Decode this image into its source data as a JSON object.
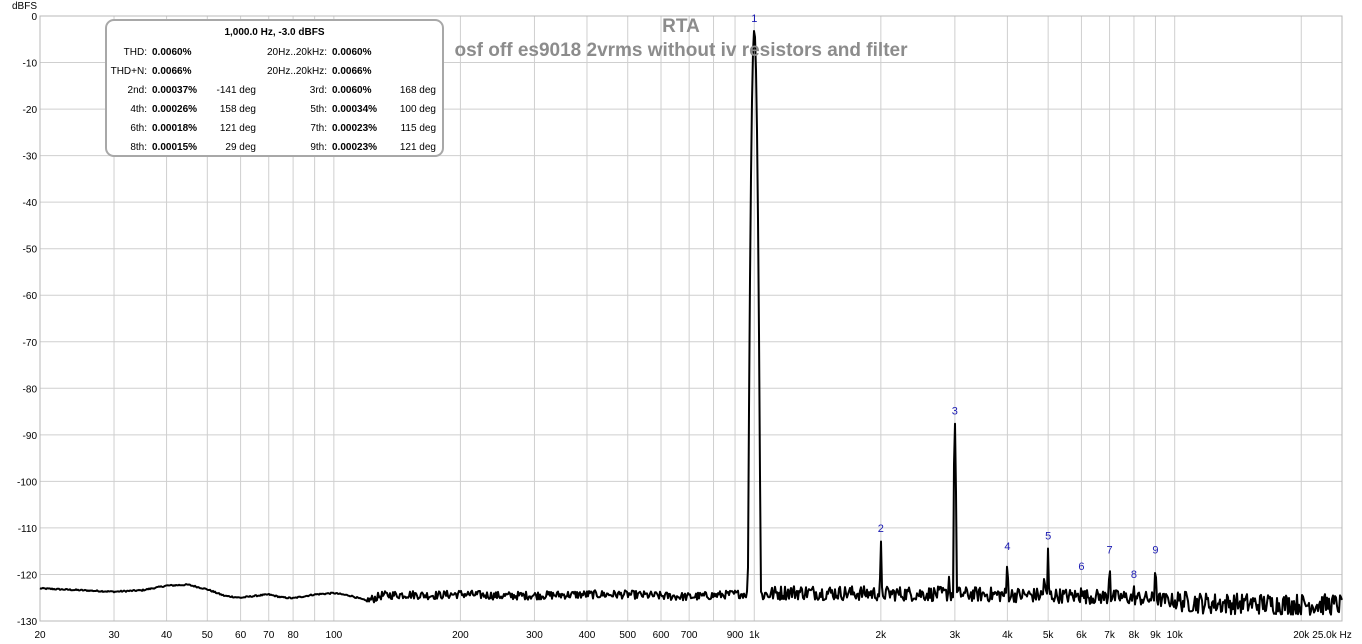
{
  "chart_data": {
    "type": "line",
    "title": "RTA",
    "subtitle": "osf off es9018 2vrms without iv resistors and filter",
    "ylabel": "dBFS",
    "xlabel": "",
    "x_unit": "Hz",
    "x_scale": "log",
    "xlim": [
      20,
      25000
    ],
    "ylim": [
      -130,
      0
    ],
    "grid": true,
    "x_tick_labels": [
      "20",
      "30",
      "40",
      "50",
      "60",
      "70",
      "80",
      "100",
      "200",
      "300",
      "400",
      "500",
      "600",
      "700",
      "900",
      "1k",
      "2k",
      "3k",
      "4k",
      "5k",
      "6k",
      "7k",
      "8k",
      "9k",
      "10k",
      "20k",
      "25.0k Hz"
    ],
    "y_tick_labels": [
      "0",
      "-10",
      "-20",
      "-30",
      "-40",
      "-50",
      "-60",
      "-70",
      "-80",
      "-90",
      "-100",
      "-110",
      "-120",
      "-130"
    ],
    "series": [
      {
        "color": "#000000",
        "noise_floor": [
          [
            20,
            -123
          ],
          [
            30,
            -123.7
          ],
          [
            35,
            -123.4
          ],
          [
            40,
            -122.4
          ],
          [
            45,
            -122.2
          ],
          [
            50,
            -123.2
          ],
          [
            55,
            -124.6
          ],
          [
            60,
            -125
          ],
          [
            65,
            -124.6
          ],
          [
            70,
            -124.3
          ],
          [
            75,
            -124.9
          ],
          [
            80,
            -125.1
          ],
          [
            90,
            -124.3
          ],
          [
            100,
            -124
          ],
          [
            110,
            -124.6
          ],
          [
            120,
            -125.7
          ],
          [
            130,
            -124.5
          ],
          [
            150,
            -124.3
          ],
          [
            170,
            -124.5
          ],
          [
            200,
            -124.2
          ],
          [
            250,
            -124.6
          ],
          [
            300,
            -124.5
          ],
          [
            400,
            -124.3
          ],
          [
            500,
            -124.3
          ],
          [
            600,
            -124.6
          ],
          [
            700,
            -124.8
          ],
          [
            800,
            -124.5
          ],
          [
            900,
            -124.2
          ],
          [
            950,
            -124.2
          ],
          [
            1050,
            -124.3
          ],
          [
            1200,
            -123.8
          ],
          [
            2000,
            -124.1
          ],
          [
            3000,
            -124.2
          ],
          [
            5000,
            -124.5
          ],
          [
            8000,
            -125
          ],
          [
            12000,
            -126.2
          ],
          [
            25000,
            -126.5
          ]
        ],
        "peaks": [
          {
            "harmonic": "1",
            "freq": 1000,
            "level": -3.0
          },
          {
            "harmonic": "2",
            "freq": 2000,
            "level": -112.6
          },
          {
            "harmonic": "3",
            "freq": 3000,
            "level": -87.4
          },
          {
            "harmonic": "4",
            "freq": 4000,
            "level": -116.5
          },
          {
            "harmonic": "5",
            "freq": 5000,
            "level": -114.2
          },
          {
            "harmonic": "6",
            "freq": 6000,
            "level": -120.8
          },
          {
            "harmonic": "7",
            "freq": 7000,
            "level": -117.2
          },
          {
            "harmonic": "8",
            "freq": 8000,
            "level": -122.5
          },
          {
            "harmonic": "9",
            "freq": 9000,
            "level": -117.2
          }
        ],
        "spurs": [
          {
            "freq": 2900,
            "level": -119.3
          },
          {
            "freq": 4900,
            "level": -118.6
          }
        ]
      }
    ]
  },
  "stats": {
    "header": "1,000.0 Hz, -3.0 dBFS",
    "thd_label": "THD:",
    "thd_value": "0.0060%",
    "thd_band_label": "20Hz..20kHz:",
    "thd_band_value": "0.0060%",
    "thdn_label": "THD+N:",
    "thdn_value": "0.0066%",
    "thdn_band_label": "20Hz..20kHz:",
    "thdn_band_value": "0.0066%",
    "harmonics": [
      {
        "label": "2nd:",
        "value": "0.00037%",
        "phase": "-141 deg"
      },
      {
        "label": "3rd:",
        "value": "0.0060%",
        "phase": "168 deg"
      },
      {
        "label": "4th:",
        "value": "0.00026%",
        "phase": "158 deg"
      },
      {
        "label": "5th:",
        "value": "0.00034%",
        "phase": "100 deg"
      },
      {
        "label": "6th:",
        "value": "0.00018%",
        "phase": "121 deg"
      },
      {
        "label": "7th:",
        "value": "0.00023%",
        "phase": "115 deg"
      },
      {
        "label": "8th:",
        "value": "0.00015%",
        "phase": "29 deg"
      },
      {
        "label": "9th:",
        "value": "0.00023%",
        "phase": "121 deg"
      }
    ]
  }
}
